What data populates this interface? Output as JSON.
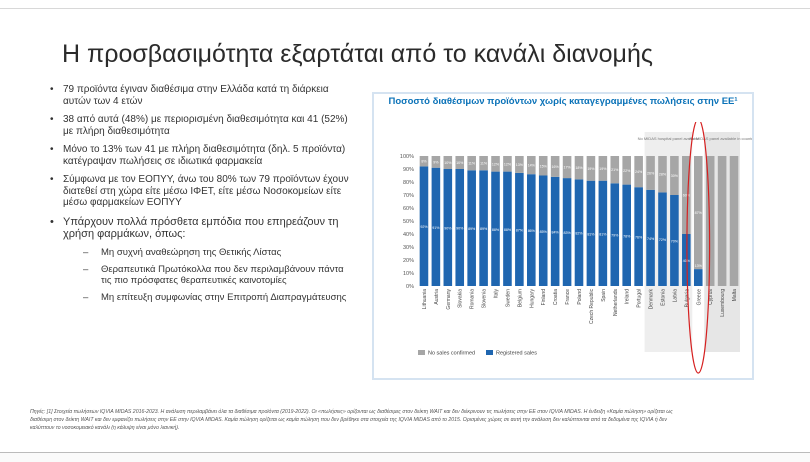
{
  "slide": {
    "title": "Η προσβασιμότητα εξαρτάται από το κανάλι διανομής"
  },
  "bullets": [
    "79 προϊόντα έγιναν διαθέσιμα στην Ελλάδα κατά τη διάρκεια αυτών των 4 ετών",
    "38 από αυτά (48%) με περιορισμένη διαθεσιμότητα και 41 (52%) με πλήρη διαθεσιμότητα",
    "Μόνο το 13% των 41 με πλήρη διαθεσιμότητα (δηλ. 5 προϊόντα) κατέγραψαν πωλήσεις σε ιδιωτικά φαρμακεία",
    "Σύμφωνα με τον ΕΟΠΥΥ, άνω του 80% των 79 προϊόντων έχουν διατεθεί στη χώρα είτε μέσω ΙΦΕΤ, είτε μέσω Νοσοκομείων είτε μέσω φαρμακείων ΕΟΠΥΥ",
    "Υπάρχουν πολλά πρόσθετα εμπόδια που επηρεάζουν τη χρήση φαρμάκων, όπως:"
  ],
  "sub_bullets": [
    "Μη συχνή αναθεώρηση της Θετικής Λίστας",
    "Θεραπευτικά Πρωτόκολλα που δεν περιλαμβάνουν πάντα τις πιο πρόσφατες θεραπευτικές καινοτομίες",
    "Μη επίτευξη συμφωνίας στην Επιτροπή Διαπραγμάτευσης"
  ],
  "footnote": "Πηγές: [1] Στοιχεία πωλήσεων IQVIA MIDAS 2016-2023. Η ανάλυση περιλαμβάνει όλα τα διαθέσιμα προϊόντα (2019-2022). Οι «πωλήσεις» ορίζονται ως διαθέσιμες στον δείκτη WAIT και δεν διέκρινουν τις πωλήσεις στην ΕΕ στον IQVIA MIDAS. Η ένδειξη «Καμία πώληση» ορίζεται ως διαθέσιμη στον δείκτη WAIT και δεν εμφανίζει πωλήσεις στην ΕΕ στην IQVIA MIDAS. Καμία πώληση ορίζεται ως καμία πώληση που δεν βρέθηκε στα στοιχεία της IQVIA MIDAS από το 2015. Ορισμένες χώρες σε αυτή την ανάλυση δεν καλύπτονται από τα δεδομένα της IQVIA ή δεν καλύπτουν το νοσοκομειακό κανάλι (η κάλυψη είναι μόνο λιανική).",
  "chart_data": {
    "type": "bar",
    "stacked": true,
    "percent_scale": true,
    "title": "Ποσοστό διαθέσιμων προϊόντων χωρίς καταγεγραμμένες πωλήσεις στην ΕΕ¹",
    "categories": [
      "Lithuania",
      "Austria",
      "Germany",
      "Slovakia",
      "Romania",
      "Slovenia",
      "Italy",
      "Sweden",
      "Belgium",
      "Hungary",
      "Finland",
      "Croatia",
      "France",
      "Poland",
      "Czech Republic",
      "Spain",
      "Netherlands",
      "Ireland",
      "Portugal",
      "Denmark",
      "Estonia",
      "Latvia",
      "Bulgaria",
      "Greece",
      "Cyprus",
      "Luxembourg",
      "Malta"
    ],
    "series": [
      {
        "name": "Registered sales",
        "color": "#1f66b0",
        "values": [
          92,
          91,
          90,
          90,
          89,
          89,
          88,
          88,
          87,
          86,
          85,
          84,
          83,
          82,
          81,
          81,
          79,
          78,
          76,
          74,
          72,
          70,
          40,
          13,
          0,
          0,
          0
        ]
      },
      {
        "name": "No sales confirmed",
        "color": "#a6a6a6",
        "values": [
          8,
          9,
          10,
          10,
          11,
          11,
          12,
          12,
          13,
          14,
          15,
          16,
          17,
          18,
          19,
          19,
          21,
          22,
          24,
          26,
          28,
          30,
          60,
          87,
          100,
          100,
          100
        ]
      }
    ],
    "data_labels_registered": [
      "92%",
      "91%",
      "90%",
      "90%",
      "89%",
      "89%",
      "88%",
      "88%",
      "87%",
      "86%",
      "85%",
      "84%",
      "83%",
      "82%",
      "81%",
      "81%",
      "79%",
      "78%",
      "76%",
      "74%",
      "72%",
      "70%",
      "40%",
      "13%",
      "",
      "",
      ""
    ],
    "data_labels_nosales": [
      "8%",
      "9%",
      "10%",
      "10%",
      "11%",
      "11%",
      "12%",
      "12%",
      "13%",
      "14%",
      "15%",
      "16%",
      "17%",
      "18%",
      "19%",
      "19%",
      "21%",
      "22%",
      "24%",
      "26%",
      "28%",
      "30%",
      "60%",
      "87%",
      "",
      "",
      ""
    ],
    "ylim": [
      0,
      100
    ],
    "yticks": [
      "0%",
      "10%",
      "20%",
      "30%",
      "40%",
      "50%",
      "60%",
      "70%",
      "80%",
      "90%",
      "100%"
    ],
    "legend": [
      "No sales confirmed",
      "Registered sales"
    ],
    "annotations": [
      "No MIDAS hospital panel available",
      "No MIDAS panel available in country"
    ],
    "highlight": "Greece"
  }
}
